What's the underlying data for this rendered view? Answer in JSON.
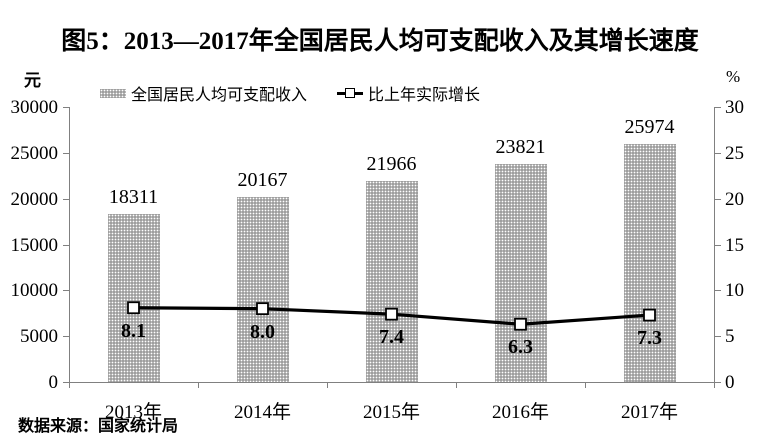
{
  "title": "图5：2013—2017年全国居民人均可支配收入及其增长速度",
  "footer": "数据来源：国家统计局",
  "axes": {
    "left_unit": "元",
    "right_unit": "%",
    "left_tick_labels": [
      "30000",
      "25000",
      "20000",
      "15000",
      "10000",
      "5000",
      "0"
    ],
    "right_tick_labels": [
      "30",
      "25",
      "20",
      "15",
      "10",
      "5",
      "0"
    ]
  },
  "legend": {
    "bar_label": "全国居民人均可支配收入",
    "line_label": "比上年实际增长"
  },
  "colors": {
    "bar_fill": "#9f9f9f",
    "bar_dots": "#ffffff",
    "line": "#000000",
    "marker_fill": "#ffffff",
    "marker_border": "#000000",
    "axis": "#808080",
    "text": "#000000"
  },
  "chart_data": {
    "type": "bar",
    "title": "图5：2013—2017年全国居民人均可支配收入及其增长速度",
    "categories": [
      "2013年",
      "2014年",
      "2015年",
      "2016年",
      "2017年"
    ],
    "series": [
      {
        "name": "全国居民人均可支配收入",
        "type": "bar",
        "axis": "left",
        "values": [
          18311,
          20167,
          21966,
          23821,
          25974
        ]
      },
      {
        "name": "比上年实际增长",
        "type": "line",
        "axis": "right",
        "values": [
          8.1,
          8.0,
          7.4,
          6.3,
          7.3
        ]
      }
    ],
    "left_axis": {
      "unit": "元",
      "min": 0,
      "max": 30000,
      "step": 5000
    },
    "right_axis": {
      "unit": "%",
      "min": 0,
      "max": 30,
      "step": 5
    },
    "grid": false,
    "legend_position": "top",
    "source_note": "数据来源：国家统计局"
  }
}
